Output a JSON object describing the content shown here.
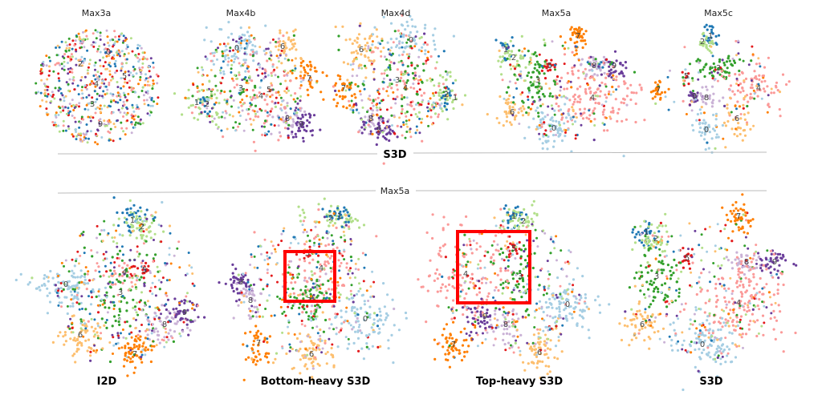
{
  "chart_data": {
    "type": "scatter",
    "top_row": {
      "panels": [
        {
          "title": "Max3a"
        },
        {
          "title": "Max4b"
        },
        {
          "title": "Max4d"
        },
        {
          "title": "Max5a"
        },
        {
          "title": "Max5c"
        }
      ]
    },
    "top_separator_label": "S3D",
    "bottom_separator_label": "Max5a",
    "bottom_row": {
      "panels": [
        {
          "title": "I2D"
        },
        {
          "title": "Bottom-heavy S3D",
          "highlight_box": true
        },
        {
          "title": "Top-heavy S3D",
          "highlight_box": true
        },
        {
          "title": "S3D"
        }
      ]
    },
    "cluster_labels": [
      "0",
      "1",
      "2",
      "3",
      "4",
      "5",
      "6",
      "7",
      "8",
      "9"
    ],
    "cluster_colors": [
      "#a6cee3",
      "#1f78b4",
      "#b2df8a",
      "#33a02c",
      "#fb9a99",
      "#e31a1c",
      "#fdbf6f",
      "#ff7f00",
      "#cab2d6",
      "#6a3d9a"
    ],
    "highlight_color": "#ff0000",
    "axes": "none",
    "grid": false
  }
}
